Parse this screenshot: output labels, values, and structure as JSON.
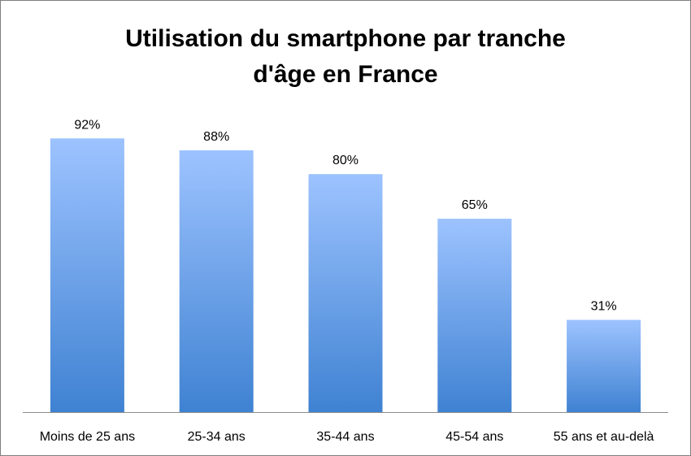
{
  "chart_data": {
    "type": "bar",
    "title_lines": [
      "Utilisation du smartphone par tranche",
      "d'âge en France"
    ],
    "categories": [
      "Moins de 25 ans",
      "25-34 ans",
      "35-44 ans",
      "45-54 ans",
      "55 ans et au-delà"
    ],
    "values": [
      92,
      88,
      80,
      65,
      31
    ],
    "value_labels": [
      "92%",
      "88%",
      "80%",
      "65%",
      "31%"
    ],
    "ylim": [
      0,
      100
    ],
    "grid": false,
    "legend": "none",
    "colors": {
      "bar_top": "#9dc3ff",
      "bar_bottom": "#3f82d2",
      "axis": "#8c8c8c"
    }
  }
}
